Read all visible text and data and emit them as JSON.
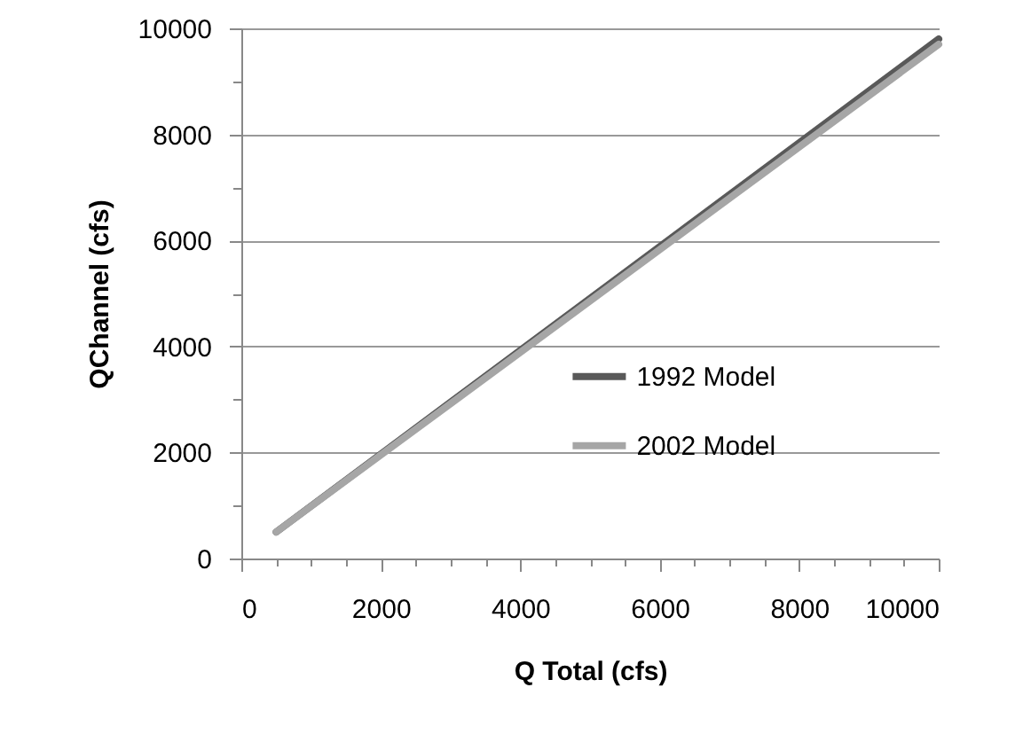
{
  "chart_data": {
    "type": "line",
    "xlabel": "Q Total (cfs)",
    "ylabel": "QChannel (cfs)",
    "x": [
      500,
      10000
    ],
    "series": [
      {
        "name": "1992 Model",
        "color": "#595959",
        "values": [
          500,
          9800
        ]
      },
      {
        "name": "2002 Model",
        "color": "#a6a6a6",
        "values": [
          500,
          9700
        ]
      }
    ],
    "xlim": [
      0,
      10000
    ],
    "ylim": [
      0,
      10000
    ],
    "xticks": [
      0,
      {
        "value": 500,
        "label": null
      },
      {
        "value": 1000,
        "label": null
      },
      {
        "value": 1500,
        "label": null
      },
      2000,
      {
        "value": 2500,
        "label": null
      },
      {
        "value": 3000,
        "label": null
      },
      {
        "value": 3500,
        "label": null
      },
      4000,
      {
        "value": 4500,
        "label": null
      },
      {
        "value": 5000,
        "label": null
      },
      {
        "value": 5500,
        "label": null
      },
      6000,
      {
        "value": 6500,
        "label": null
      },
      {
        "value": 7000,
        "label": null
      },
      {
        "value": 7500,
        "label": null
      },
      8000,
      {
        "value": 8500,
        "label": null
      },
      {
        "value": 9000,
        "label": null
      },
      {
        "value": 9500,
        "label": null
      },
      10000
    ],
    "yticks": [
      0,
      {
        "value": 1000,
        "label": null
      },
      2000,
      {
        "value": 3000,
        "label": null
      },
      4000,
      {
        "value": 5000,
        "label": null
      },
      6000,
      {
        "value": 7000,
        "label": null
      },
      8000,
      {
        "value": 9000,
        "label": null
      },
      10000
    ],
    "grid": "y",
    "legend": "right",
    "line_style": "solid",
    "marker": "none"
  }
}
